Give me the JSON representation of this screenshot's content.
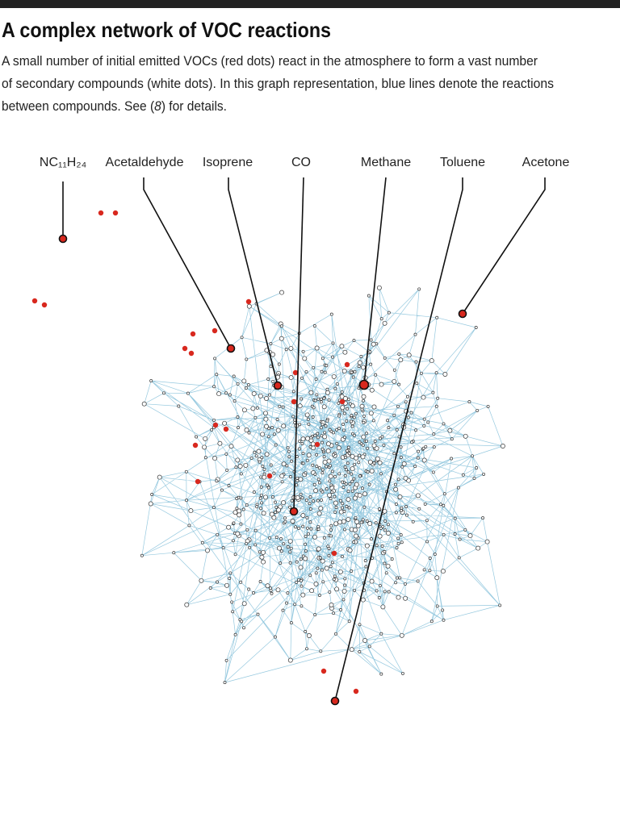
{
  "header": {
    "title": "A complex network of VOC reactions",
    "description": [
      "A small number of initial emitted VOCs (red dots) react in the atmosphere to form a vast number",
      "of secondary compounds (white dots). In this graph representation, blue lines denote the reactions",
      [
        "between compounds. See (",
        "8",
        ") for details."
      ]
    ]
  },
  "labels": [
    "NC₁₁H₂₄",
    "Acetaldehyde",
    "Isoprene",
    "CO",
    "Methane",
    "Toluene",
    "Acetone"
  ]
}
